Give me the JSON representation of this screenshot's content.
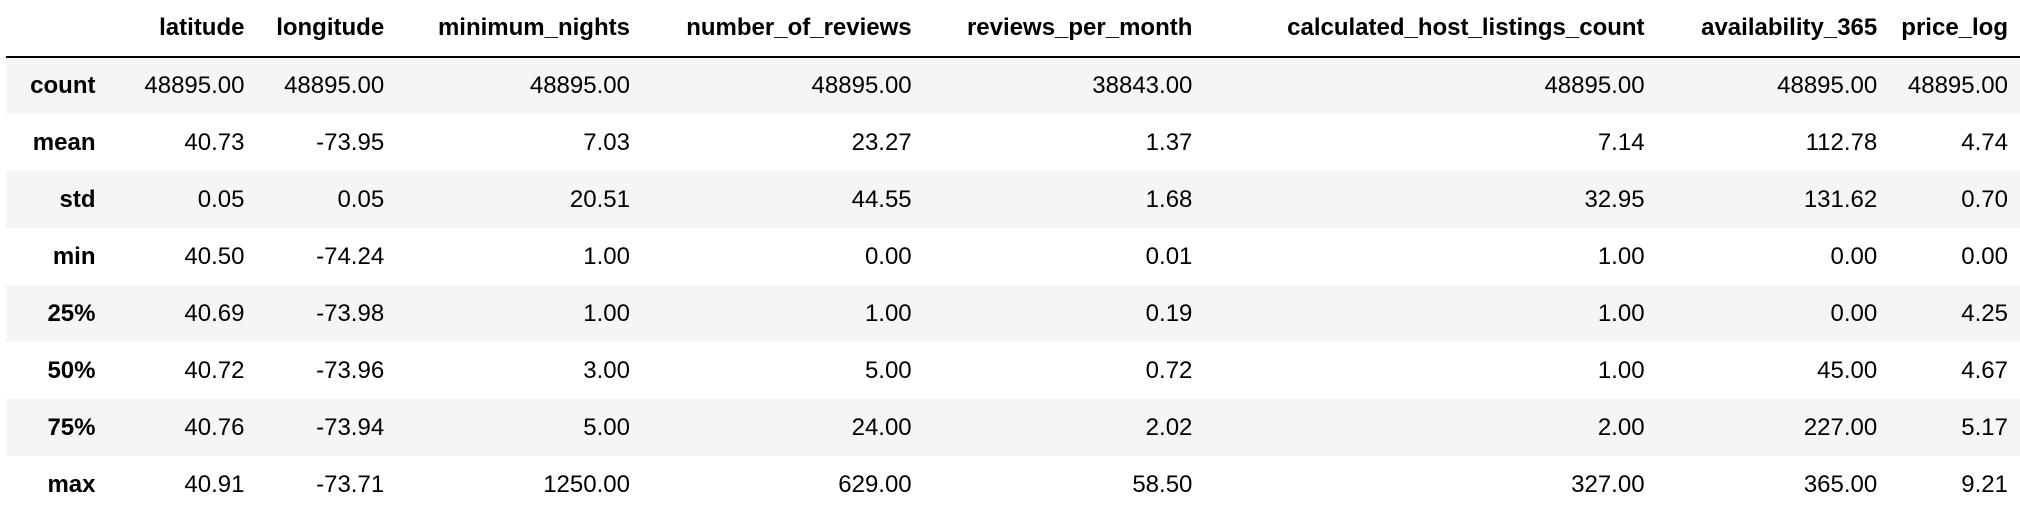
{
  "table": {
    "columns": [
      "latitude",
      "longitude",
      "minimum_nights",
      "number_of_reviews",
      "reviews_per_month",
      "calculated_host_listings_count",
      "availability_365",
      "price_log"
    ],
    "rows": [
      {
        "label": "count",
        "values": [
          "48895.00",
          "48895.00",
          "48895.00",
          "48895.00",
          "38843.00",
          "48895.00",
          "48895.00",
          "48895.00"
        ]
      },
      {
        "label": "mean",
        "values": [
          "40.73",
          "-73.95",
          "7.03",
          "23.27",
          "1.37",
          "7.14",
          "112.78",
          "4.74"
        ]
      },
      {
        "label": "std",
        "values": [
          "0.05",
          "0.05",
          "20.51",
          "44.55",
          "1.68",
          "32.95",
          "131.62",
          "0.70"
        ]
      },
      {
        "label": "min",
        "values": [
          "40.50",
          "-74.24",
          "1.00",
          "0.00",
          "0.01",
          "1.00",
          "0.00",
          "0.00"
        ]
      },
      {
        "label": "25%",
        "values": [
          "40.69",
          "-73.98",
          "1.00",
          "1.00",
          "0.19",
          "1.00",
          "0.00",
          "4.25"
        ]
      },
      {
        "label": "50%",
        "values": [
          "40.72",
          "-73.96",
          "3.00",
          "5.00",
          "0.72",
          "1.00",
          "45.00",
          "4.67"
        ]
      },
      {
        "label": "75%",
        "values": [
          "40.76",
          "-73.94",
          "5.00",
          "24.00",
          "2.02",
          "2.00",
          "227.00",
          "5.17"
        ]
      },
      {
        "label": "max",
        "values": [
          "40.91",
          "-73.71",
          "1250.00",
          "629.00",
          "58.50",
          "327.00",
          "365.00",
          "9.21"
        ]
      }
    ]
  },
  "colors": {
    "stripe": "#f5f5f5",
    "background": "#ffffff",
    "text": "#000000"
  }
}
